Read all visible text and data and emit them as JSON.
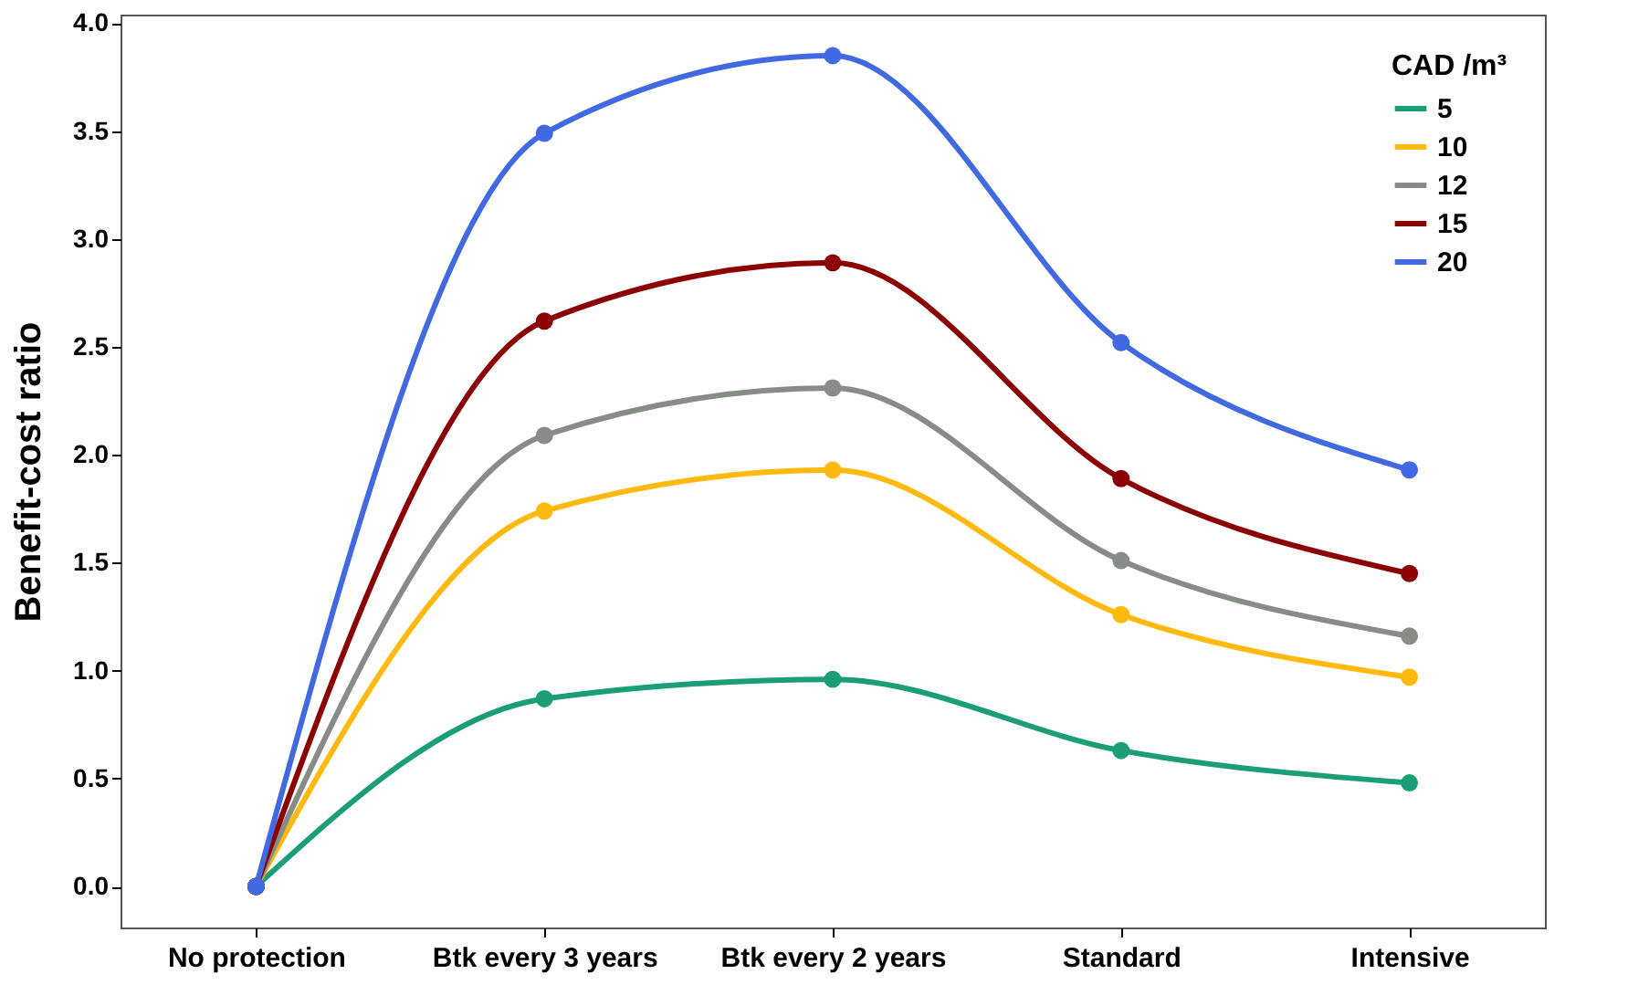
{
  "chart_data": {
    "type": "line",
    "xlabel": null,
    "ylabel": "Benefit-cost ratio",
    "legend_title": "CAD /m³",
    "categories": [
      "No protection",
      "Btk every 3 years",
      "Btk every 2 years",
      "Standard",
      "Intensive"
    ],
    "series": [
      {
        "name": "5",
        "color": "#1b9e77",
        "values": [
          0,
          0.87,
          0.96,
          0.63,
          0.48
        ]
      },
      {
        "name": "10",
        "color": "#ffb90f",
        "values": [
          0,
          1.74,
          1.93,
          1.26,
          0.97
        ]
      },
      {
        "name": "12",
        "color": "#878c87",
        "values": [
          0,
          2.09,
          2.31,
          1.51,
          1.16
        ]
      },
      {
        "name": "15",
        "color": "#8b0000",
        "values": [
          0,
          2.62,
          2.89,
          1.89,
          1.45
        ]
      },
      {
        "name": "20",
        "color": "#4169e1",
        "values": [
          0,
          3.49,
          3.85,
          2.52,
          1.93
        ]
      }
    ],
    "ylim": [
      -0.19,
      4.04
    ],
    "yticks": [
      {
        "value": 0,
        "label": "0.0"
      },
      {
        "value": 0.5,
        "label": "0.5"
      },
      {
        "value": 1,
        "label": "1.0"
      },
      {
        "value": 1.5,
        "label": "1.5"
      },
      {
        "value": 2,
        "label": "2.0"
      },
      {
        "value": 2.5,
        "label": "2.5"
      },
      {
        "value": 3,
        "label": "3.0"
      },
      {
        "value": 3.5,
        "label": "3.5"
      },
      {
        "value": 4,
        "label": "4.0"
      }
    ],
    "grid": false,
    "legend": "top right",
    "marker": "circle",
    "line_style": "solid"
  }
}
